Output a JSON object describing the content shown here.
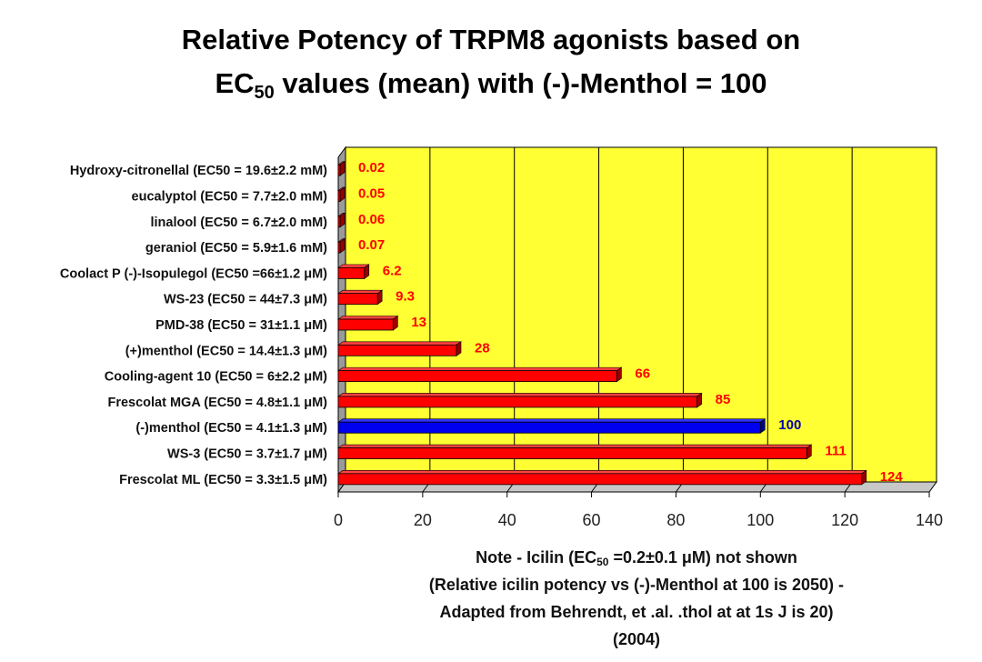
{
  "title": {
    "line1": "Relative Potency of TRPM8 agonists based on",
    "line2_pre": "EC",
    "line2_sub": "50",
    "line2_post": " values (mean) with (-)-Menthol = 100"
  },
  "note": {
    "line1_pre": "Note - Icilin (EC",
    "line1_sub": "50",
    "line1_post": " =0.2±0.1 μM) not shown",
    "line2": "(Relative icilin potency vs (-)-Menthol at 100 is 2050) -",
    "line3": "Adapted from Behrendt, et .al. .thol at  at 1s J is 20)",
    "line4": "(2004)"
  },
  "colors": {
    "plot_bg": "#ffff33",
    "bar": "#ff0000",
    "highlight_bar": "#0000ee",
    "value_label": "#ff0000",
    "highlight_label": "#0000aa"
  },
  "chart_data": {
    "type": "bar",
    "orientation": "horizontal",
    "categories": [
      "Hydroxy-citronellal  (EC50 = 19.6±2.2 mM)",
      "eucalyptol  (EC50 = 7.7±2.0 mM)",
      "linalool  (EC50 = 6.7±2.0 mM)",
      "geraniol  (EC50 = 5.9±1.6 mM)",
      "Coolact P (-)-Isopulegol  (EC50 =66±1.2 μM)",
      "WS-23  (EC50 = 44±7.3 μM)",
      "PMD-38  (EC50 = 31±1.1 μM)",
      "(+)menthol  (EC50 = 14.4±1.3 μM)",
      "Cooling-agent 10  (EC50 = 6±2.2 μM)",
      "Frescolat MGA  (EC50 = 4.8±1.1 μM)",
      "(-)menthol  (EC50 = 4.1±1.3 μM)",
      "WS-3  (EC50 = 3.7±1.7 μM)",
      "Frescolat ML  (EC50 = 3.3±1.5 μM)"
    ],
    "values": [
      0.02,
      0.05,
      0.06,
      0.07,
      6.2,
      9.3,
      13,
      28,
      66,
      85,
      100,
      111,
      124
    ],
    "value_labels": [
      "0.02",
      "0.05",
      "0.06",
      "0.07",
      "6.2",
      "9.3",
      "13",
      "28",
      "66",
      "85",
      "100",
      "111",
      "124"
    ],
    "highlight_index": 10,
    "xlim": [
      0,
      140
    ],
    "xticks": [
      0,
      20,
      40,
      60,
      80,
      100,
      120,
      140
    ],
    "grid": true,
    "xlabel": "",
    "ylabel": ""
  }
}
